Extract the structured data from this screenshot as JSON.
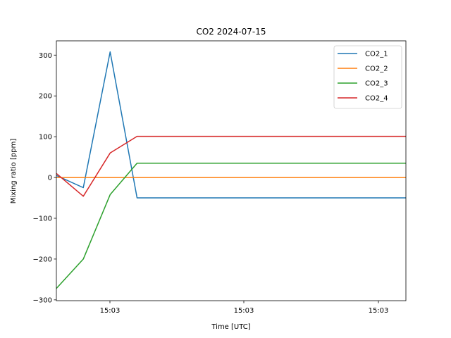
{
  "chart_data": {
    "type": "line",
    "title": "CO2 2024-07-15",
    "xlabel": "Time [UTC]",
    "ylabel": "Mixing ratio [ppm]",
    "x_tick_labels": [
      "15:03",
      "15:03",
      "15:03"
    ],
    "y_ticks": [
      -300,
      -200,
      -100,
      0,
      100,
      200,
      300
    ],
    "y_tick_labels": [
      "−300",
      "−200",
      "−100",
      "0",
      "100",
      "200",
      "300"
    ],
    "ylim": [
      -302,
      335
    ],
    "grid": false,
    "legend_position": "top-right",
    "series": [
      {
        "name": "CO2_1",
        "color": "#1f77b4",
        "values": [
          5,
          -25,
          308,
          -50,
          -50,
          -50,
          -50,
          -50,
          -50,
          -50,
          -50,
          -50,
          -50,
          -50
        ]
      },
      {
        "name": "CO2_2",
        "color": "#ff7f0e",
        "values": [
          0,
          0,
          0,
          0,
          0,
          0,
          0,
          0,
          0,
          0,
          0,
          0,
          0,
          0
        ]
      },
      {
        "name": "CO2_3",
        "color": "#2ca02c",
        "values": [
          -272,
          -200,
          -42,
          35,
          35,
          35,
          35,
          35,
          35,
          35,
          35,
          35,
          35,
          35
        ]
      },
      {
        "name": "CO2_4",
        "color": "#d62728",
        "values": [
          10,
          -46,
          60,
          101,
          101,
          101,
          101,
          101,
          101,
          101,
          101,
          101,
          101,
          101
        ]
      }
    ]
  }
}
